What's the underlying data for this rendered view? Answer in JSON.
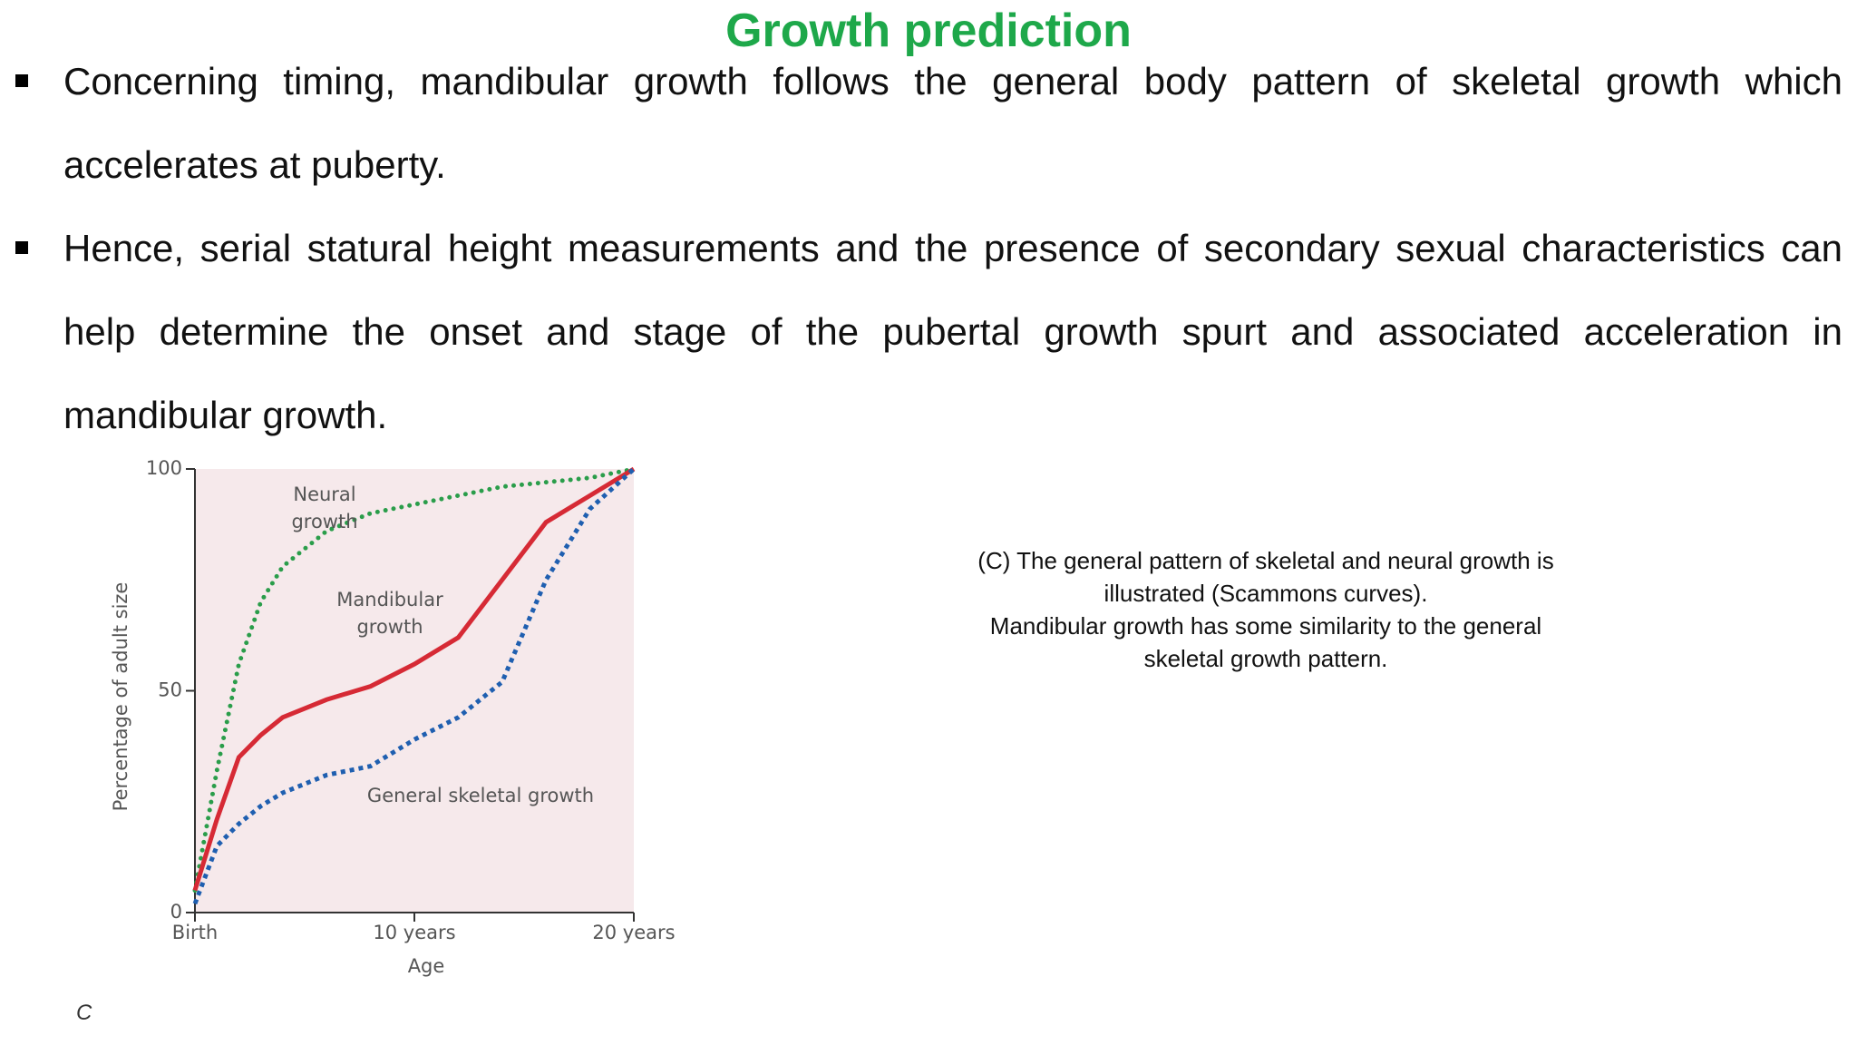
{
  "title": "Growth prediction",
  "bullets": [
    "Concerning timing, mandibular growth follows the general body pattern of skeletal growth which accelerates at puberty.",
    "Hence, serial statural height measurements and the presence of secondary sexual characteristics can help determine the onset and stage of the pubertal growth spurt and associated acceleration in mandibular growth."
  ],
  "caption": [
    "(C) The general pattern of skeletal and neural growth is",
    "illustrated (Scammons curves).",
    "Mandibular growth has some similarity to the general",
    "skeletal growth pattern."
  ],
  "panel_label": "C",
  "chart_data": {
    "type": "line",
    "xlabel": "Age",
    "ylabel": "Percentage of adult size",
    "x": [
      0,
      1,
      2,
      3,
      4,
      6,
      8,
      10,
      12,
      14,
      16,
      18,
      20
    ],
    "xlim": [
      0,
      20
    ],
    "ylim": [
      0,
      100
    ],
    "xticks": [
      {
        "value": 0,
        "label": "Birth"
      },
      {
        "value": 10,
        "label": "10 years"
      },
      {
        "value": 20,
        "label": "20 years"
      }
    ],
    "yticks": [
      0,
      50,
      100
    ],
    "series": [
      {
        "name": "Neural growth",
        "color": "#2a9d4a",
        "style": "dotted",
        "values": [
          5,
          32,
          56,
          70,
          78,
          86,
          90,
          92,
          94,
          96,
          97,
          98,
          100
        ]
      },
      {
        "name": "Mandibular growth",
        "color": "#d62a35",
        "style": "solid",
        "values": [
          5,
          21,
          35,
          40,
          44,
          48,
          51,
          56,
          62,
          75,
          88,
          94,
          100
        ]
      },
      {
        "name": "General skeletal growth",
        "color": "#1f5fb0",
        "style": "dotted",
        "values": [
          2,
          15,
          20,
          24,
          27,
          31,
          33,
          39,
          44,
          52,
          75,
          91,
          100
        ]
      }
    ]
  }
}
